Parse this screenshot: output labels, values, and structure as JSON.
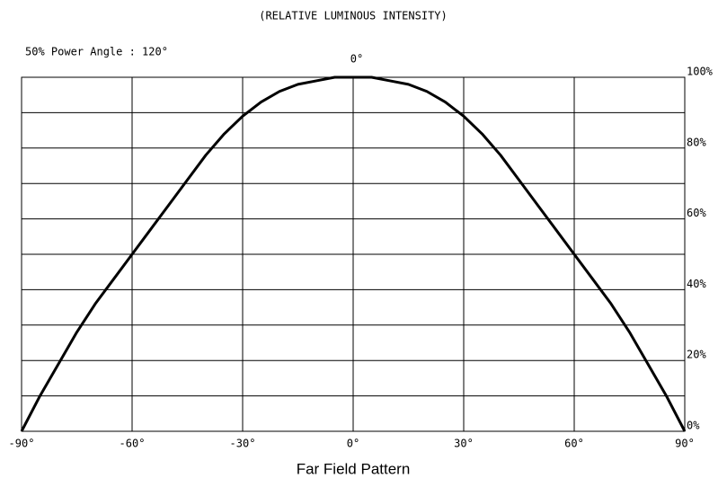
{
  "chart_data": {
    "type": "line",
    "title": "(RELATIVE LUMINOUS INTENSITY)",
    "subtitle": "50% Power Angle : 120°",
    "annotation": "0°",
    "caption": "Far Field Pattern",
    "x": [
      -90,
      -85,
      -80,
      -75,
      -70,
      -65,
      -60,
      -55,
      -50,
      -45,
      -40,
      -35,
      -30,
      -25,
      -20,
      -15,
      -10,
      -5,
      0,
      5,
      10,
      15,
      20,
      25,
      30,
      35,
      40,
      45,
      50,
      55,
      60,
      65,
      70,
      75,
      80,
      85,
      90
    ],
    "series": [
      {
        "name": "Relative luminous intensity",
        "color": "#000000",
        "values": [
          0,
          10,
          19,
          28,
          36,
          43,
          50,
          57,
          64,
          71,
          78,
          84,
          89,
          93,
          96,
          98,
          99,
          100,
          100,
          100,
          99,
          98,
          96,
          93,
          89,
          84,
          78,
          71,
          64,
          57,
          50,
          43,
          36,
          28,
          19,
          10,
          0
        ]
      }
    ],
    "xlim": [
      -90,
      90
    ],
    "xticks": [
      {
        "value": -90,
        "label": "-90°"
      },
      {
        "value": -60,
        "label": "-60°"
      },
      {
        "value": -30,
        "label": "-30°"
      },
      {
        "value": 0,
        "label": "0°"
      },
      {
        "value": 30,
        "label": "30°"
      },
      {
        "value": 60,
        "label": "60°"
      },
      {
        "value": 90,
        "label": "90°"
      }
    ],
    "ylim": [
      0,
      100
    ],
    "yticks": [
      {
        "value": 0,
        "label": "0%"
      },
      {
        "value": 20,
        "label": "20%"
      },
      {
        "value": 40,
        "label": "40%"
      },
      {
        "value": 60,
        "label": "60%"
      },
      {
        "value": 80,
        "label": "80%"
      },
      {
        "value": 100,
        "label": "100%"
      }
    ],
    "minor_yticks": [
      10,
      30,
      50,
      70,
      90
    ],
    "grid": true
  }
}
